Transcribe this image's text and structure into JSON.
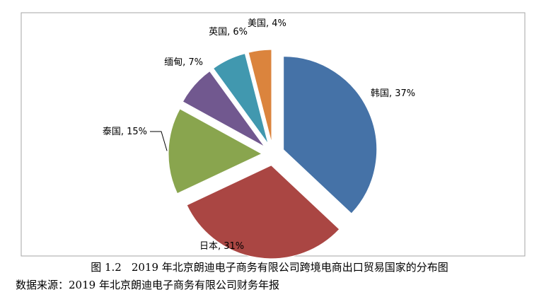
{
  "chart_data": {
    "type": "pie",
    "title": "",
    "label_sep": ", ",
    "slices": [
      {
        "name": "韩国",
        "value": 37,
        "label": "37%",
        "color": "#4572A7"
      },
      {
        "name": "日本",
        "value": 31,
        "label": "31%",
        "color": "#AA4643"
      },
      {
        "name": "泰国",
        "value": 15,
        "label": "15%",
        "color": "#89A54E"
      },
      {
        "name": "缅甸",
        "value": 7,
        "label": "7%",
        "color": "#71588F"
      },
      {
        "name": "英国",
        "value": 6,
        "label": "6%",
        "color": "#4198AF"
      },
      {
        "name": "美国",
        "value": 4,
        "label": "4%",
        "color": "#DB843D"
      }
    ],
    "exploded": true,
    "legend": "none"
  },
  "caption": {
    "number": "图 1.2",
    "text": "2019 年北京朗迪电子商务有限公司跨境电商出口贸易国家的分布图"
  },
  "source": "数据来源：2019 年北京朗迪电子商务有限公司财务年报"
}
